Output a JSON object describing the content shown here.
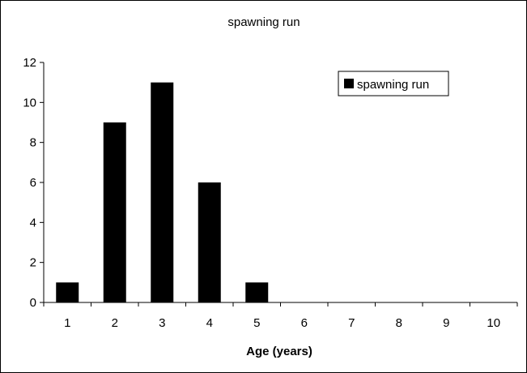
{
  "chart_data": {
    "type": "bar",
    "title": "spawning run",
    "xlabel": "Age (years)",
    "ylabel": "",
    "categories": [
      "1",
      "2",
      "3",
      "4",
      "5",
      "6",
      "7",
      "8",
      "9",
      "10"
    ],
    "series": [
      {
        "name": "spawning run",
        "values": [
          1,
          9,
          11,
          6,
          1,
          0,
          0,
          0,
          0,
          0
        ],
        "color": "#000000"
      }
    ],
    "ylim": [
      0,
      12
    ],
    "yticks": [
      "0",
      "2",
      "4",
      "6",
      "8",
      "10",
      "12"
    ],
    "grid": false,
    "legend_position": "top-right"
  }
}
